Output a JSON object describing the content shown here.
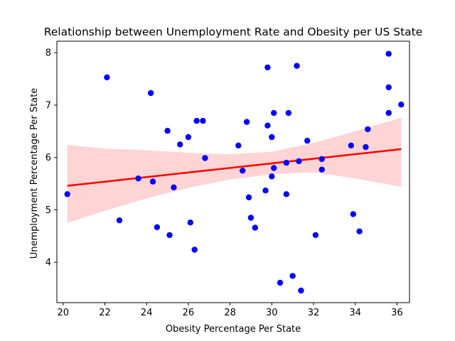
{
  "chart_data": {
    "type": "scatter",
    "title": "Relationship between Unemployment Rate and Obesity per US State",
    "xlabel": "Obesity Percentage Per State",
    "ylabel": "Unemployment Percentage Per State",
    "xlim": [
      19.7,
      36.6
    ],
    "ylim": [
      3.23,
      8.22
    ],
    "xticks": [
      20,
      22,
      24,
      26,
      28,
      30,
      32,
      34,
      36
    ],
    "yticks": [
      4,
      5,
      6,
      7,
      8
    ],
    "grid": false,
    "colors": {
      "points": "#0000ff",
      "regression": "#ff0000",
      "confidence_band": "#ffcccc"
    },
    "series": [
      {
        "points": [
          [
            20.2,
            5.3
          ],
          [
            22.1,
            7.53
          ],
          [
            22.7,
            4.8
          ],
          [
            23.6,
            5.6
          ],
          [
            24.2,
            7.23
          ],
          [
            24.3,
            5.54
          ],
          [
            24.5,
            4.67
          ],
          [
            25.0,
            6.51
          ],
          [
            25.1,
            4.52
          ],
          [
            25.3,
            5.43
          ],
          [
            25.6,
            6.25
          ],
          [
            26.0,
            6.39
          ],
          [
            26.1,
            4.76
          ],
          [
            26.3,
            4.24
          ],
          [
            26.4,
            6.7
          ],
          [
            26.7,
            6.7
          ],
          [
            26.8,
            5.99
          ],
          [
            28.4,
            6.23
          ],
          [
            28.6,
            5.75
          ],
          [
            28.8,
            6.68
          ],
          [
            28.9,
            5.24
          ],
          [
            29.0,
            4.85
          ],
          [
            29.2,
            4.66
          ],
          [
            29.7,
            5.37
          ],
          [
            29.8,
            7.72
          ],
          [
            29.8,
            6.61
          ],
          [
            30.0,
            6.39
          ],
          [
            30.0,
            5.64
          ],
          [
            30.1,
            6.85
          ],
          [
            30.1,
            5.8
          ],
          [
            30.4,
            3.61
          ],
          [
            30.7,
            5.9
          ],
          [
            30.7,
            5.3
          ],
          [
            30.8,
            6.85
          ],
          [
            31.0,
            3.74
          ],
          [
            31.2,
            7.75
          ],
          [
            31.3,
            5.93
          ],
          [
            31.4,
            3.46
          ],
          [
            31.7,
            6.32
          ],
          [
            32.1,
            4.52
          ],
          [
            32.4,
            5.97
          ],
          [
            32.4,
            5.77
          ],
          [
            33.8,
            6.23
          ],
          [
            33.9,
            4.92
          ],
          [
            34.2,
            4.59
          ],
          [
            34.5,
            6.2
          ],
          [
            34.6,
            6.54
          ],
          [
            35.6,
            7.98
          ],
          [
            35.6,
            7.34
          ],
          [
            35.6,
            6.85
          ],
          [
            36.2,
            7.01
          ]
        ]
      }
    ],
    "regression": {
      "x": [
        20.2,
        36.2
      ],
      "y": [
        5.46,
        6.16
      ]
    },
    "confidence_band": {
      "x": [
        20.2,
        22,
        24,
        26,
        28,
        30,
        32,
        34,
        36.2
      ],
      "lower": [
        4.75,
        4.98,
        5.22,
        5.42,
        5.58,
        5.68,
        5.72,
        5.6,
        5.44
      ],
      "upper": [
        6.24,
        6.17,
        6.14,
        6.09,
        6.06,
        6.11,
        6.28,
        6.5,
        6.76
      ]
    }
  }
}
